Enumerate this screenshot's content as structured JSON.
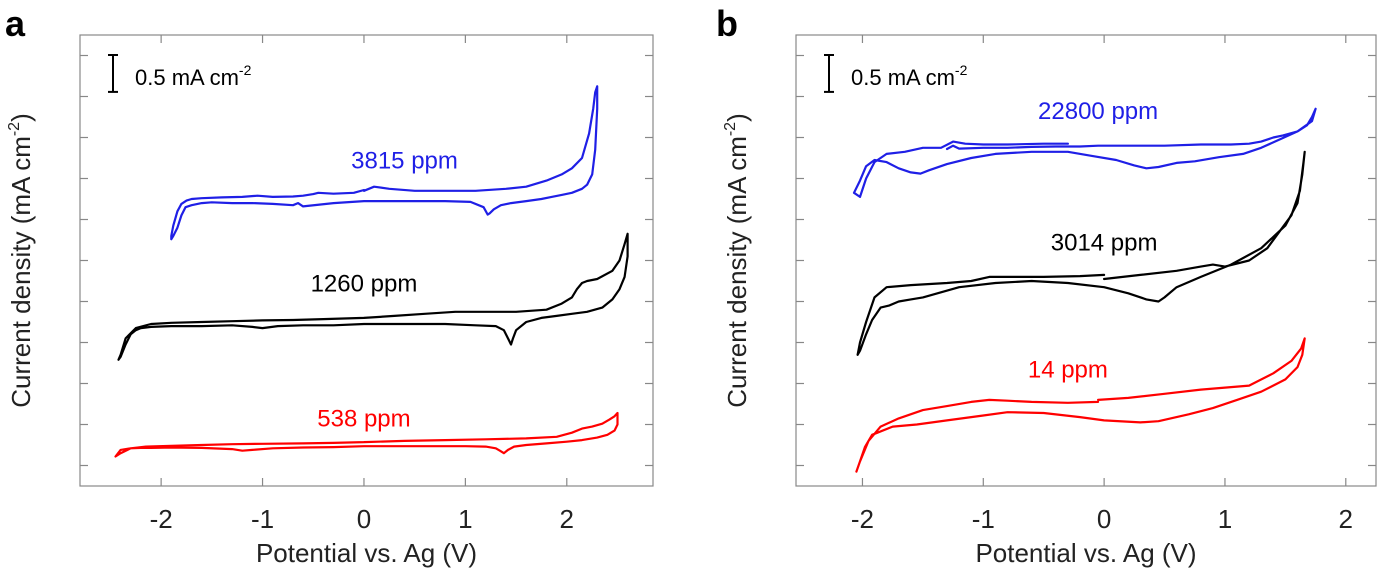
{
  "chart_data": [
    {
      "type": "line",
      "panel_label": "a",
      "title": "",
      "xlabel": "Potential vs. Ag (V)",
      "ylabel": "Current density (mA cm",
      "ylabel_sup": "-2",
      "ylabel_end": ")",
      "xlim": [
        -2.8,
        2.85
      ],
      "ylim": [
        0,
        11
      ],
      "xticks": [
        -2,
        -1,
        0,
        1,
        2
      ],
      "xtick_labels": [
        "-2",
        "-1",
        "0",
        "1",
        "2"
      ],
      "yticks": [
        0.5,
        1.5,
        2.5,
        3.5,
        4.5,
        5.5,
        6.5,
        7.5,
        8.5,
        9.5,
        10.5
      ],
      "scale_bar": {
        "label": "0.5 mA cm",
        "sup": "-2",
        "value_mA_cm2": 0.5,
        "length_units": 0.9
      },
      "series": [
        {
          "name": "3815 ppm",
          "color": "#1f1fe6",
          "label_at": [
            0.4,
            7.75
          ],
          "x": [
            0.0,
            0.1,
            0.25,
            0.5,
            0.8,
            1.1,
            1.4,
            1.6,
            1.8,
            1.95,
            2.05,
            2.15,
            2.22,
            2.26,
            2.28,
            2.3,
            2.3,
            2.28,
            2.25,
            2.2,
            2.15,
            2.05,
            1.95,
            1.85,
            1.75,
            1.6,
            1.45,
            1.35,
            1.28,
            1.24,
            1.22,
            1.18,
            1.05,
            0.8,
            0.5,
            0.2,
            0.0,
            -0.3,
            -0.6,
            -0.65,
            -0.7,
            -0.9,
            -1.1,
            -1.3,
            -1.5,
            -1.6,
            -1.7,
            -1.76,
            -1.8,
            -1.84,
            -1.88,
            -1.9,
            -1.9,
            -1.88,
            -1.84,
            -1.8,
            -1.75,
            -1.7,
            -1.6,
            -1.4,
            -1.2,
            -1.05,
            -0.9,
            -0.7,
            -0.6,
            -0.5,
            -0.45,
            -0.3,
            -0.1,
            0.0
          ],
          "y": [
            7.2,
            7.3,
            7.25,
            7.2,
            7.2,
            7.2,
            7.25,
            7.3,
            7.45,
            7.6,
            7.75,
            8.0,
            8.6,
            9.2,
            9.6,
            9.75,
            9.2,
            8.2,
            7.6,
            7.35,
            7.25,
            7.15,
            7.1,
            7.05,
            7.0,
            6.95,
            6.9,
            6.85,
            6.75,
            6.65,
            6.62,
            6.8,
            6.93,
            6.95,
            6.95,
            6.95,
            6.95,
            6.9,
            6.82,
            6.9,
            6.85,
            6.88,
            6.9,
            6.9,
            6.92,
            6.9,
            6.85,
            6.8,
            6.6,
            6.3,
            6.1,
            6.02,
            6.1,
            6.35,
            6.7,
            6.88,
            6.96,
            7.0,
            7.02,
            7.04,
            7.05,
            7.08,
            7.05,
            7.06,
            7.08,
            7.12,
            7.15,
            7.13,
            7.15,
            7.22
          ]
        },
        {
          "name": "1260 ppm",
          "color": "#000000",
          "label_at": [
            0.0,
            4.75
          ],
          "x": [
            0.0,
            0.3,
            0.6,
            0.9,
            1.2,
            1.5,
            1.8,
            1.95,
            2.05,
            2.1,
            2.15,
            2.2,
            2.3,
            2.45,
            2.52,
            2.57,
            2.6,
            2.6,
            2.57,
            2.52,
            2.45,
            2.35,
            2.2,
            2.05,
            1.9,
            1.75,
            1.6,
            1.5,
            1.47,
            1.45,
            1.42,
            1.38,
            1.3,
            1.1,
            0.8,
            0.4,
            0.0,
            -0.3,
            -0.6,
            -0.85,
            -1.0,
            -1.1,
            -1.3,
            -1.6,
            -1.9,
            -2.1,
            -2.2,
            -2.25,
            -2.3,
            -2.35,
            -2.4,
            -2.42,
            -2.4,
            -2.35,
            -2.25,
            -2.1,
            -1.9,
            -1.6,
            -1.3,
            -1.0,
            -0.7,
            -0.4,
            0.0
          ],
          "y": [
            4.1,
            4.15,
            4.2,
            4.25,
            4.25,
            4.25,
            4.3,
            4.45,
            4.6,
            4.8,
            4.95,
            5.0,
            5.05,
            5.25,
            5.5,
            5.9,
            6.15,
            5.6,
            5.1,
            4.8,
            4.55,
            4.35,
            4.25,
            4.2,
            4.15,
            4.1,
            4.0,
            3.8,
            3.6,
            3.45,
            3.6,
            3.8,
            3.9,
            3.92,
            3.95,
            3.95,
            3.95,
            3.92,
            3.92,
            3.9,
            3.85,
            3.88,
            3.92,
            3.9,
            3.9,
            3.88,
            3.85,
            3.8,
            3.7,
            3.45,
            3.15,
            3.08,
            3.2,
            3.6,
            3.85,
            3.95,
            3.98,
            4.0,
            4.02,
            4.04,
            4.05,
            4.07,
            4.1
          ]
        },
        {
          "name": "538 ppm",
          "color": "#ff0000",
          "label_at": [
            0.0,
            1.45
          ],
          "x": [
            0.0,
            0.4,
            0.8,
            1.2,
            1.6,
            1.9,
            2.05,
            2.15,
            2.25,
            2.35,
            2.42,
            2.47,
            2.5,
            2.5,
            2.47,
            2.4,
            2.3,
            2.15,
            2.0,
            1.8,
            1.6,
            1.48,
            1.42,
            1.38,
            1.34,
            1.3,
            1.2,
            1.0,
            0.6,
            0.2,
            0.0,
            -0.3,
            -0.6,
            -0.9,
            -1.1,
            -1.2,
            -1.3,
            -1.6,
            -1.9,
            -2.1,
            -2.2,
            -2.3,
            -2.4,
            -2.45,
            -2.4,
            -2.3,
            -2.15,
            -1.9,
            -1.6,
            -1.3,
            -1.0,
            -0.6,
            -0.3,
            0.0
          ],
          "y": [
            1.07,
            1.1,
            1.12,
            1.14,
            1.16,
            1.2,
            1.3,
            1.4,
            1.45,
            1.52,
            1.62,
            1.7,
            1.78,
            1.5,
            1.35,
            1.25,
            1.18,
            1.12,
            1.08,
            1.04,
            1.0,
            0.96,
            0.88,
            0.8,
            0.86,
            0.92,
            0.96,
            0.97,
            0.97,
            0.97,
            0.97,
            0.95,
            0.94,
            0.92,
            0.88,
            0.86,
            0.9,
            0.93,
            0.94,
            0.93,
            0.93,
            0.92,
            0.88,
            0.72,
            0.8,
            0.92,
            0.96,
            0.98,
            1.0,
            1.02,
            1.03,
            1.04,
            1.05,
            1.07
          ]
        }
      ]
    },
    {
      "type": "line",
      "panel_label": "b",
      "title": "",
      "xlabel": "Potential vs. Ag (V)",
      "ylabel": "Current density (mA cm",
      "ylabel_sup": "-2",
      "ylabel_end": ")",
      "xlim": [
        -2.55,
        2.25
      ],
      "ylim": [
        0,
        11
      ],
      "xticks": [
        -2,
        -1,
        0,
        1,
        2
      ],
      "xtick_labels": [
        "-2",
        "-1",
        "0",
        "1",
        "2"
      ],
      "yticks": [
        0.5,
        1.5,
        2.5,
        3.5,
        4.5,
        5.5,
        6.5,
        7.5,
        8.5,
        9.5,
        10.5
      ],
      "scale_bar": {
        "label": "0.5 mA cm",
        "sup": "-2",
        "value_mA_cm2": 0.5,
        "length_units": 0.9
      },
      "series": [
        {
          "name": "22800 ppm",
          "color": "#1f1fe6",
          "label_at": [
            -0.05,
            8.95
          ],
          "x": [
            -0.3,
            -0.5,
            -0.8,
            -1.0,
            -1.15,
            -1.25,
            -1.35,
            -1.5,
            -1.65,
            -1.8,
            -1.9,
            -1.97,
            -2.02,
            -2.07,
            -2.02,
            -1.97,
            -1.9,
            -1.8,
            -1.7,
            -1.6,
            -1.52,
            -1.45,
            -1.3,
            -1.1,
            -0.9,
            -0.6,
            -0.3,
            -0.1,
            0.1,
            0.25,
            0.35,
            0.45,
            0.6,
            0.75,
            0.95,
            1.15,
            1.3,
            1.45,
            1.6,
            1.72,
            1.75,
            1.72,
            1.68,
            1.6,
            1.48,
            1.4,
            1.3,
            1.2,
            1.05,
            0.8,
            0.5,
            0.2,
            -0.05,
            -0.2,
            -0.4,
            -0.6,
            -0.8,
            -1.0,
            -1.2,
            -1.25,
            -1.3
          ],
          "y": [
            8.35,
            8.35,
            8.33,
            8.33,
            8.35,
            8.4,
            8.25,
            8.25,
            8.15,
            8.1,
            7.9,
            7.5,
            7.05,
            7.15,
            7.45,
            7.8,
            7.95,
            7.9,
            7.75,
            7.65,
            7.62,
            7.7,
            7.85,
            8.0,
            8.1,
            8.15,
            8.15,
            8.05,
            7.95,
            7.82,
            7.75,
            7.78,
            7.88,
            7.92,
            8.02,
            8.1,
            8.25,
            8.45,
            8.65,
            8.9,
            9.2,
            9.0,
            8.8,
            8.65,
            8.55,
            8.5,
            8.4,
            8.35,
            8.33,
            8.33,
            8.3,
            8.3,
            8.3,
            8.28,
            8.28,
            8.27,
            8.25,
            8.25,
            8.23,
            8.3,
            8.22
          ]
        },
        {
          "name": "3014 ppm",
          "color": "#000000",
          "label_at": [
            0.0,
            5.75
          ],
          "x": [
            0.0,
            0.3,
            0.6,
            0.7,
            0.8,
            0.9,
            1.0,
            1.2,
            1.35,
            1.45,
            1.55,
            1.62,
            1.65,
            1.66,
            1.64,
            1.6,
            1.5,
            1.3,
            1.05,
            0.8,
            0.6,
            0.5,
            0.45,
            0.35,
            0.2,
            0.0,
            -0.3,
            -0.6,
            -0.9,
            -1.2,
            -1.5,
            -1.6,
            -1.7,
            -1.78,
            -1.85,
            -1.92,
            -1.97,
            -2.02,
            -2.04,
            -2.02,
            -1.97,
            -1.9,
            -1.8,
            -1.6,
            -1.3,
            -1.1,
            -0.95,
            -0.8,
            -0.5,
            -0.2,
            0.0
          ],
          "y": [
            5.05,
            5.15,
            5.25,
            5.3,
            5.35,
            5.4,
            5.35,
            5.5,
            5.8,
            6.2,
            6.6,
            7.2,
            7.9,
            8.15,
            7.6,
            6.9,
            6.35,
            5.8,
            5.4,
            5.1,
            4.85,
            4.6,
            4.5,
            4.55,
            4.7,
            4.85,
            4.95,
            5.0,
            4.95,
            4.85,
            4.6,
            4.55,
            4.5,
            4.4,
            4.35,
            4.05,
            3.7,
            3.3,
            3.2,
            3.5,
            4.0,
            4.6,
            4.85,
            4.9,
            4.95,
            5.0,
            5.1,
            5.1,
            5.1,
            5.12,
            5.15
          ]
        },
        {
          "name": "14 ppm",
          "color": "#ff0000",
          "label_at": [
            -0.3,
            2.65
          ],
          "x": [
            -0.05,
            0.2,
            0.5,
            0.8,
            1.0,
            1.2,
            1.4,
            1.55,
            1.63,
            1.66,
            1.64,
            1.6,
            1.5,
            1.3,
            1.1,
            0.9,
            0.7,
            0.45,
            0.3,
            0.0,
            -0.2,
            -0.5,
            -0.8,
            -1.0,
            -1.3,
            -1.55,
            -1.75,
            -1.92,
            -1.98,
            -2.02,
            -2.05,
            -2.02,
            -1.95,
            -1.85,
            -1.7,
            -1.5,
            -1.3,
            -1.1,
            -0.95,
            -0.8,
            -0.6,
            -0.3,
            -0.05
          ],
          "y": [
            2.1,
            2.15,
            2.25,
            2.35,
            2.4,
            2.45,
            2.75,
            3.05,
            3.35,
            3.6,
            3.2,
            2.9,
            2.6,
            2.3,
            2.1,
            1.9,
            1.75,
            1.58,
            1.55,
            1.6,
            1.68,
            1.78,
            1.8,
            1.72,
            1.6,
            1.5,
            1.45,
            1.25,
            0.95,
            0.6,
            0.35,
            0.6,
            1.1,
            1.45,
            1.65,
            1.85,
            1.95,
            2.05,
            2.1,
            2.08,
            2.05,
            2.03,
            2.05
          ]
        }
      ]
    }
  ]
}
